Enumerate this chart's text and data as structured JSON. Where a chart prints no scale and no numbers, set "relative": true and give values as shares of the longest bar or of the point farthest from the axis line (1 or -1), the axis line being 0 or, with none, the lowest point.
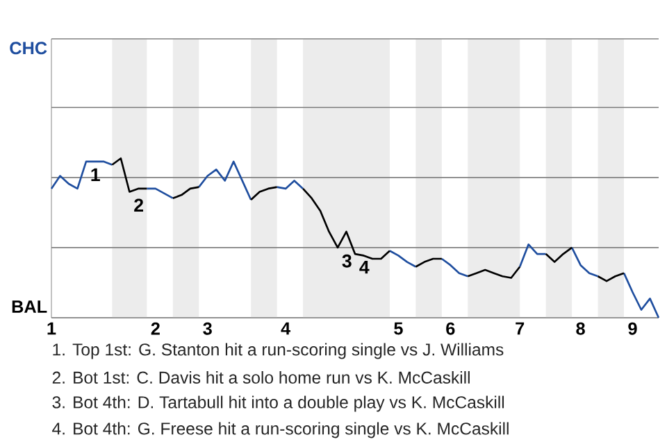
{
  "chart_data": {
    "type": "line",
    "relative": true,
    "categories": [
      "1",
      null,
      null,
      null,
      null,
      null,
      null,
      null,
      null,
      null,
      null,
      null,
      "2",
      null,
      null,
      null,
      null,
      null,
      "3",
      null,
      null,
      null,
      null,
      null,
      null,
      null,
      null,
      "4",
      null,
      null,
      null,
      null,
      null,
      null,
      null,
      null,
      null,
      null,
      null,
      null,
      "5",
      null,
      null,
      null,
      null,
      null,
      "6",
      null,
      null,
      null,
      null,
      null,
      null,
      null,
      "7",
      null,
      null,
      null,
      null,
      null,
      null,
      "8",
      null,
      null,
      null,
      null,
      null,
      "9",
      null,
      null,
      null
    ],
    "series": [
      {
        "color": "#1f4e9f",
        "values": [
          0.81,
          0.89,
          0.84,
          0.81,
          0.98,
          0.98,
          0.98,
          0.96,
          null,
          null,
          null,
          0.81,
          0.81,
          0.78,
          0.75,
          null,
          null,
          0.82,
          0.89,
          0.93,
          0.86,
          0.98,
          0.86,
          0.74,
          null,
          null,
          0.82,
          0.81,
          0.86,
          0.81,
          null,
          null,
          null,
          null,
          null,
          null,
          null,
          null,
          null,
          0.42,
          0.39,
          0.35,
          0.32,
          null,
          null,
          0.37,
          0.33,
          0.28,
          0.26,
          null,
          null,
          null,
          null,
          null,
          0.32,
          0.46,
          0.4,
          0.4,
          null,
          null,
          0.44,
          0.33,
          0.28,
          0.26,
          null,
          null,
          0.28,
          0.16,
          0.05,
          0.12,
          0
        ]
      },
      {
        "color": "#000000",
        "values": [
          null,
          null,
          null,
          null,
          null,
          null,
          null,
          0.96,
          1,
          0.79,
          0.81,
          0.81,
          null,
          null,
          0.75,
          0.77,
          0.81,
          0.82,
          null,
          null,
          null,
          null,
          null,
          0.74,
          0.79,
          0.81,
          0.82,
          null,
          null,
          0.81,
          0.75,
          0.67,
          0.54,
          0.44,
          0.54,
          0.4,
          0.39,
          0.37,
          0.37,
          0.42,
          null,
          null,
          0.32,
          0.35,
          0.37,
          0.37,
          null,
          null,
          0.26,
          0.28,
          0.3,
          0.28,
          0.26,
          0.25,
          0.32,
          null,
          null,
          0.4,
          0.35,
          0.4,
          0.44,
          null,
          null,
          0.26,
          0.23,
          0.26,
          0.28,
          null,
          null,
          null,
          null
        ]
      }
    ],
    "ref_lines": [
      {
        "axis": "y",
        "value": 0,
        "label": "BAL",
        "color": "#808080"
      },
      {
        "axis": "y",
        "value": 0.44,
        "color": "#808080"
      },
      {
        "axis": "y",
        "value": 0.88,
        "color": "#808080"
      },
      {
        "axis": "y",
        "value": 1.32,
        "color": "#808080"
      },
      {
        "axis": "y",
        "value": 1.75,
        "label": "CHC",
        "color": "#808080"
      }
    ],
    "annotations": [
      {
        "text": "1",
        "y": 0.98
      },
      {
        "text": "2",
        "y": 0.79
      },
      {
        "text": "3",
        "y": 0.44
      },
      {
        "text": "4",
        "y": 0.4
      },
      "1. Top 1st: G. Stanton hit a run-scoring single vs J. Williams",
      "2. Bot 1st: C. Davis hit a solo home run vs K. McCaskill",
      "3. Bot 4th: D. Tartabull hit into a double play vs K. McCaskill",
      "4. Bot 4th: G. Freese hit a run-scoring single vs K. McCaskill"
    ]
  }
}
